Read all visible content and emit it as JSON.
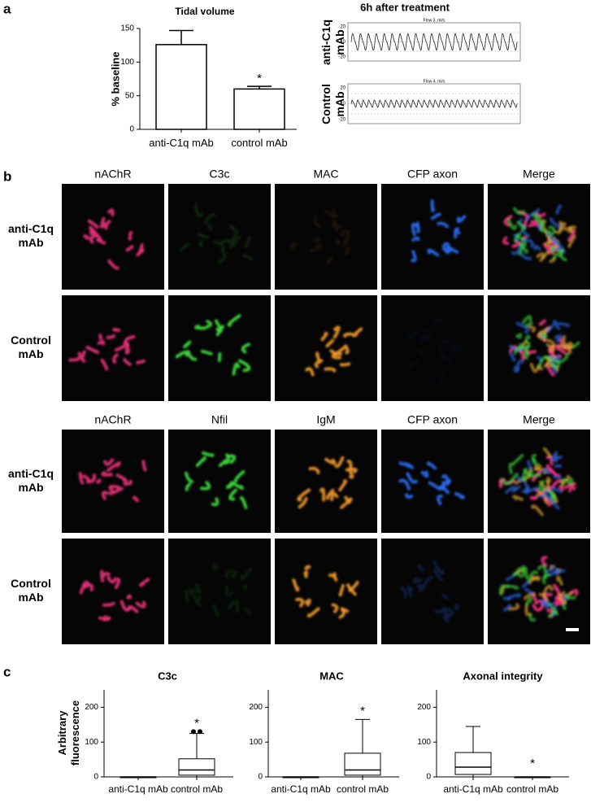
{
  "panel_labels": [
    "a",
    "b",
    "c"
  ],
  "chart_data": [
    {
      "type": "bar",
      "title": "Tidal volume",
      "y_label": "% baseline",
      "categories": [
        "anti-C1q mAb",
        "control mAb"
      ],
      "values": [
        126,
        60
      ],
      "errors": [
        21,
        4
      ],
      "annotations": [
        {
          "text": "*",
          "category": "control mAb"
        }
      ],
      "ylim": [
        0,
        150
      ],
      "yticks": [
        0,
        50,
        100,
        150
      ],
      "color": "#ffffff"
    },
    {
      "type": "box",
      "title": "C3c",
      "y_label": "Arbitrary fluorescence",
      "categories": [
        "anti-C1q mAb",
        "control mAb"
      ],
      "boxes": [
        {
          "min": 0,
          "q1": 0,
          "median": 0,
          "q3": 0,
          "max": 0,
          "outliers": []
        },
        {
          "min": 0,
          "q1": 5,
          "median": 20,
          "q3": 52,
          "max": 125,
          "outliers": [
            130,
            130
          ]
        }
      ],
      "annotations": [
        {
          "text": "*",
          "category": "control mAb"
        }
      ],
      "ylim": [
        0,
        250
      ],
      "yticks": [
        0,
        100,
        200
      ]
    },
    {
      "type": "box",
      "title": "MAC",
      "categories": [
        "anti-C1q mAb",
        "control mAb"
      ],
      "boxes": [
        {
          "min": 0,
          "q1": 0,
          "median": 0,
          "q3": 0,
          "max": 0,
          "outliers": []
        },
        {
          "min": 0,
          "q1": 5,
          "median": 20,
          "q3": 68,
          "max": 165,
          "outliers": []
        }
      ],
      "annotations": [
        {
          "text": "*",
          "category": "control mAb"
        }
      ],
      "ylim": [
        0,
        250
      ],
      "yticks": [
        0,
        100,
        200
      ]
    },
    {
      "type": "box",
      "title": "Axonal integrity",
      "categories": [
        "anti-C1q mAb",
        "control mAb"
      ],
      "boxes": [
        {
          "min": 0,
          "q1": 7,
          "median": 28,
          "q3": 70,
          "max": 145,
          "outliers": []
        },
        {
          "min": 0,
          "q1": 0,
          "median": 0,
          "q3": 0,
          "max": 0,
          "outliers": []
        }
      ],
      "annotations": [
        {
          "text": "*",
          "category": "control mAb"
        }
      ],
      "ylim": [
        0,
        250
      ],
      "yticks": [
        0,
        100,
        200
      ]
    }
  ],
  "traces": {
    "title": "6h after treatment",
    "rows": [
      {
        "label": "anti-C1q mAb",
        "channel": "Flow 3, ml/s"
      },
      {
        "label": "Control mAb",
        "channel": "Flow 4, ml/s"
      }
    ],
    "yticks": [
      20,
      0,
      -20
    ]
  },
  "micrographs": [
    {
      "columns": [
        "nAChR",
        "C3c",
        "MAC",
        "CFP axon",
        "Merge"
      ],
      "rows": [
        "anti-C1q mAb",
        "Control mAb"
      ]
    },
    {
      "columns": [
        "nAChR",
        "Nfil",
        "IgM",
        "CFP axon",
        "Merge"
      ],
      "rows": [
        "anti-C1q mAb",
        "Control mAb"
      ]
    }
  ]
}
